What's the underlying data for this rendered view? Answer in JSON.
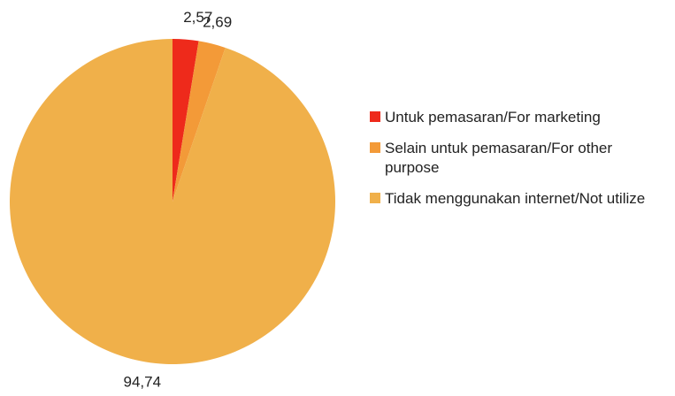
{
  "chart_data": {
    "type": "pie",
    "categories": [
      "Untuk pemasaran/For marketing",
      "Selain untuk pemasaran/For other purpose",
      "Tidak menggunakan internet/Not utilize"
    ],
    "values": [
      2.57,
      2.69,
      94.74
    ],
    "value_labels": [
      "2,57",
      "2,69",
      "94,74"
    ],
    "colors": [
      "#ee2a1b",
      "#f39a38",
      "#f0b04a"
    ],
    "legend": "right"
  }
}
